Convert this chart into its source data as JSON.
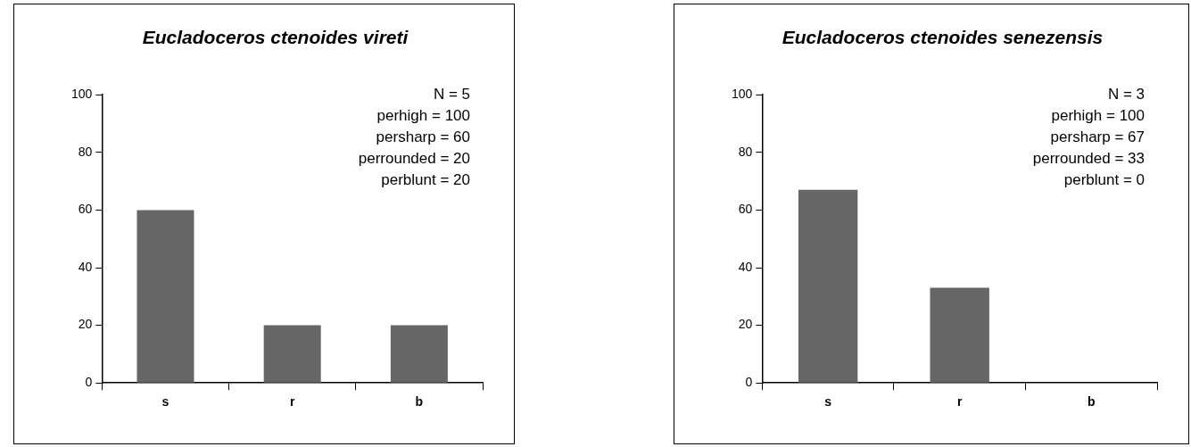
{
  "chart_data": [
    {
      "type": "bar",
      "title": "Eucladoceros ctenoides vireti",
      "categories": [
        "s",
        "r",
        "b"
      ],
      "values": [
        60,
        20,
        20
      ],
      "color": "#666666",
      "ylim": [
        0,
        100
      ],
      "yticks": [
        0,
        20,
        40,
        60,
        80,
        100
      ],
      "grid": false,
      "legend": false,
      "annotations": [
        "N = 5",
        "perhigh = 100",
        "persharp = 60",
        "perrounded = 20",
        "perblunt = 20"
      ]
    },
    {
      "type": "bar",
      "title": "Eucladoceros ctenoides senezensis",
      "categories": [
        "s",
        "r",
        "b"
      ],
      "values": [
        67,
        33,
        0
      ],
      "color": "#666666",
      "ylim": [
        0,
        100
      ],
      "yticks": [
        0,
        20,
        40,
        60,
        80,
        100
      ],
      "grid": false,
      "legend": false,
      "annotations": [
        "N = 3",
        "perhigh = 100",
        "persharp = 67",
        "perrounded = 33",
        "perblunt = 0"
      ]
    }
  ]
}
